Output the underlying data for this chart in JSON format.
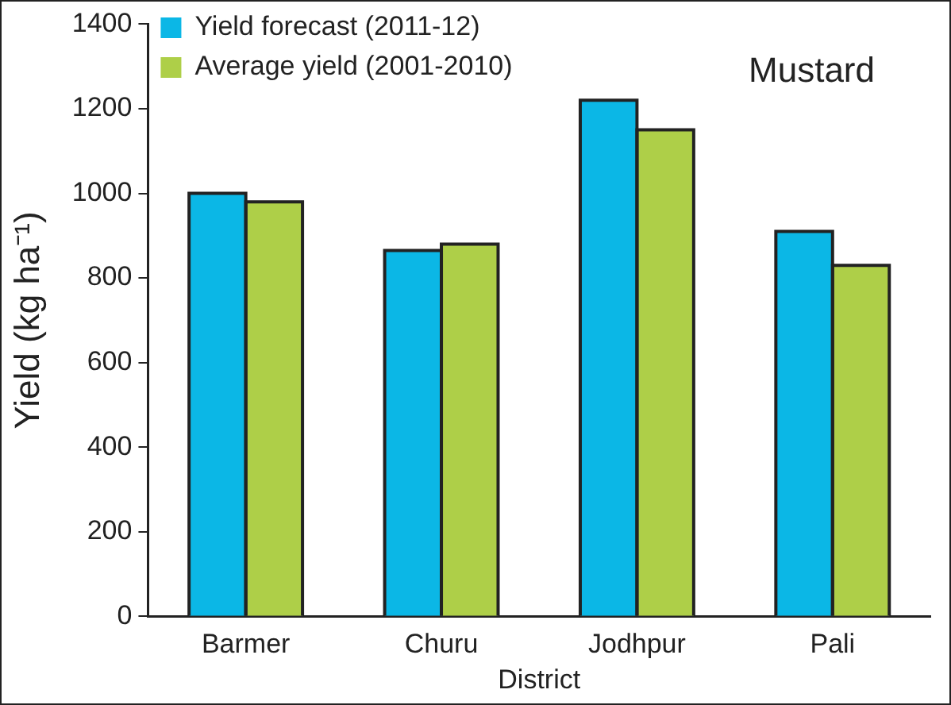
{
  "chart_data": {
    "type": "bar",
    "xlabel": "District",
    "ylabel": "Yield (kg ha⁻¹)",
    "annotations": [
      "Mustard"
    ],
    "categories": [
      "Barmer",
      "Churu",
      "Jodhpur",
      "Pali"
    ],
    "series": [
      {
        "name": "Yield forecast (2011-12)",
        "color": "#0bb7e6",
        "values": [
          1000,
          865,
          1220,
          910
        ]
      },
      {
        "name": "Average yield (2001-2010)",
        "color": "#aecf48",
        "values": [
          980,
          880,
          1150,
          830
        ]
      }
    ],
    "ylim": [
      0,
      1400
    ],
    "yticks": [
      0,
      200,
      400,
      600,
      800,
      1000,
      1200,
      1400
    ],
    "grid": false,
    "legend": "top left"
  }
}
